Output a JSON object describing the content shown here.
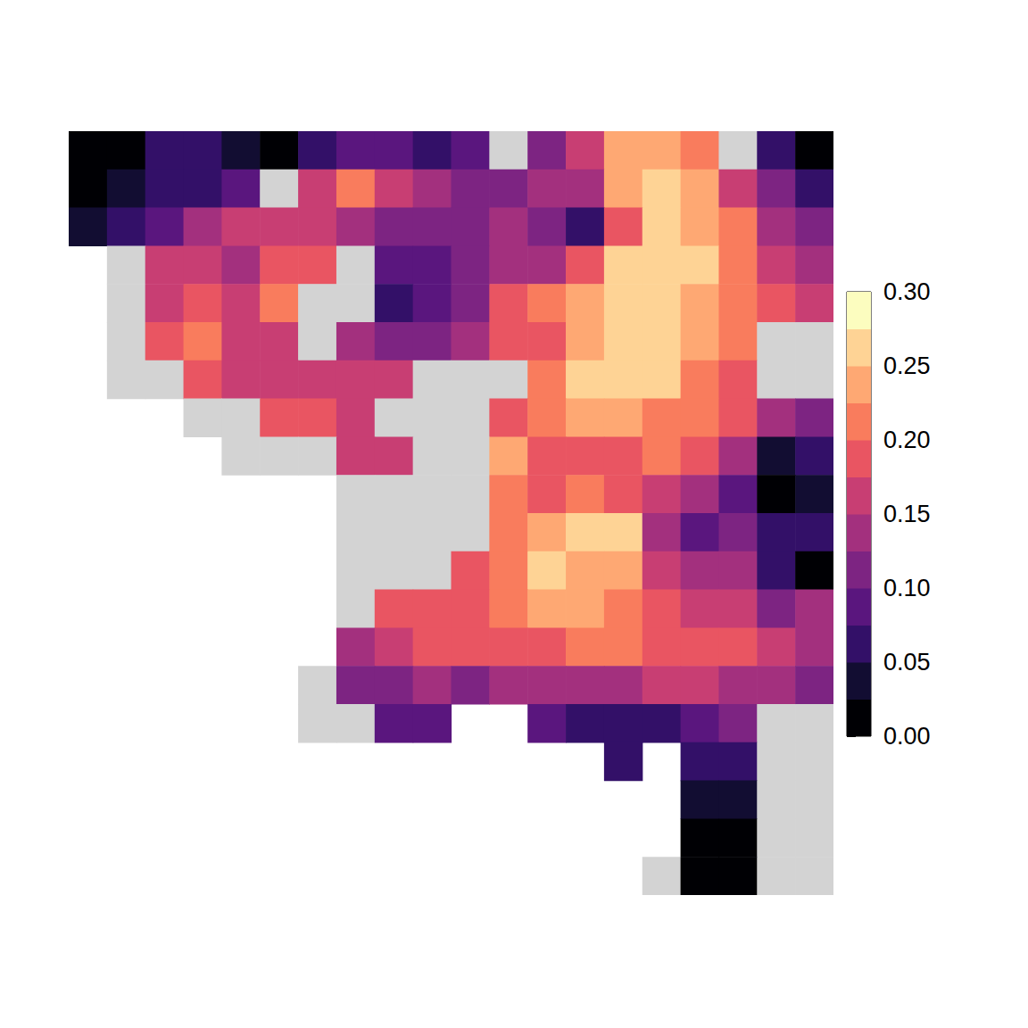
{
  "chart_data": {
    "type": "heatmap",
    "tick_labels": false,
    "xlim": [
      0,
      20
    ],
    "ylim": [
      0,
      20
    ],
    "cells": [
      [
        0,
        0,
        0.01
      ],
      [
        1,
        0,
        0.02
      ],
      [
        2,
        0,
        0.06
      ],
      [
        3,
        0,
        0.07
      ],
      [
        4,
        0,
        0.04
      ],
      [
        5,
        0,
        0.01
      ],
      [
        6,
        0,
        0.05
      ],
      [
        7,
        0,
        0.09
      ],
      [
        8,
        0,
        0.08
      ],
      [
        9,
        0,
        0.07
      ],
      [
        10,
        0,
        0.09
      ],
      [
        11,
        0,
        null
      ],
      [
        12,
        0,
        0.11
      ],
      [
        13,
        0,
        0.16
      ],
      [
        14,
        0,
        0.24
      ],
      [
        15,
        0,
        0.24
      ],
      [
        16,
        0,
        0.21
      ],
      [
        17,
        0,
        null
      ],
      [
        18,
        0,
        0.06
      ],
      [
        19,
        0,
        0.01
      ],
      [
        0,
        1,
        0.01
      ],
      [
        1,
        1,
        0.04
      ],
      [
        2,
        1,
        0.06
      ],
      [
        3,
        1,
        0.07
      ],
      [
        4,
        1,
        0.08
      ],
      [
        5,
        1,
        null
      ],
      [
        6,
        1,
        0.16
      ],
      [
        7,
        1,
        0.21
      ],
      [
        8,
        1,
        0.16
      ],
      [
        9,
        1,
        0.14
      ],
      [
        10,
        1,
        0.11
      ],
      [
        11,
        1,
        0.11
      ],
      [
        12,
        1,
        0.13
      ],
      [
        13,
        1,
        0.14
      ],
      [
        14,
        1,
        0.24
      ],
      [
        15,
        1,
        0.26
      ],
      [
        16,
        1,
        0.24
      ],
      [
        17,
        1,
        0.16
      ],
      [
        18,
        1,
        0.11
      ],
      [
        19,
        1,
        0.06
      ],
      [
        0,
        2,
        0.04
      ],
      [
        1,
        2,
        0.06
      ],
      [
        2,
        2,
        0.09
      ],
      [
        3,
        2,
        0.14
      ],
      [
        4,
        2,
        0.16
      ],
      [
        5,
        2,
        0.16
      ],
      [
        6,
        2,
        0.16
      ],
      [
        7,
        2,
        0.14
      ],
      [
        8,
        2,
        0.11
      ],
      [
        9,
        2,
        0.11
      ],
      [
        10,
        2,
        0.11
      ],
      [
        11,
        2,
        0.14
      ],
      [
        12,
        2,
        0.11
      ],
      [
        13,
        2,
        0.06
      ],
      [
        14,
        2,
        0.19
      ],
      [
        15,
        2,
        0.26
      ],
      [
        16,
        2,
        0.24
      ],
      [
        17,
        2,
        0.21
      ],
      [
        18,
        2,
        0.14
      ],
      [
        19,
        2,
        0.11
      ],
      [
        1,
        3,
        null
      ],
      [
        2,
        3,
        0.16
      ],
      [
        3,
        3,
        0.16
      ],
      [
        4,
        3,
        0.14
      ],
      [
        5,
        3,
        0.19
      ],
      [
        6,
        3,
        0.19
      ],
      [
        7,
        3,
        null
      ],
      [
        8,
        3,
        0.09
      ],
      [
        9,
        3,
        0.09
      ],
      [
        10,
        3,
        0.11
      ],
      [
        11,
        3,
        0.14
      ],
      [
        12,
        3,
        0.14
      ],
      [
        13,
        3,
        0.19
      ],
      [
        14,
        3,
        0.26
      ],
      [
        15,
        3,
        0.26
      ],
      [
        16,
        3,
        0.26
      ],
      [
        17,
        3,
        0.21
      ],
      [
        18,
        3,
        0.16
      ],
      [
        19,
        3,
        0.14
      ],
      [
        1,
        4,
        null
      ],
      [
        2,
        4,
        0.16
      ],
      [
        3,
        4,
        0.19
      ],
      [
        4,
        4,
        0.16
      ],
      [
        5,
        4,
        0.21
      ],
      [
        6,
        4,
        null
      ],
      [
        7,
        4,
        null
      ],
      [
        8,
        4,
        0.06
      ],
      [
        9,
        4,
        0.09
      ],
      [
        10,
        4,
        0.11
      ],
      [
        11,
        4,
        0.19
      ],
      [
        12,
        4,
        0.21
      ],
      [
        13,
        4,
        0.24
      ],
      [
        14,
        4,
        0.26
      ],
      [
        15,
        4,
        0.26
      ],
      [
        16,
        4,
        0.24
      ],
      [
        17,
        4,
        0.21
      ],
      [
        18,
        4,
        0.19
      ],
      [
        19,
        4,
        0.16
      ],
      [
        1,
        5,
        null
      ],
      [
        2,
        5,
        0.19
      ],
      [
        3,
        5,
        0.21
      ],
      [
        4,
        5,
        0.16
      ],
      [
        5,
        5,
        0.16
      ],
      [
        6,
        5,
        null
      ],
      [
        7,
        5,
        0.14
      ],
      [
        8,
        5,
        0.11
      ],
      [
        9,
        5,
        0.11
      ],
      [
        10,
        5,
        0.14
      ],
      [
        11,
        5,
        0.19
      ],
      [
        12,
        5,
        0.19
      ],
      [
        13,
        5,
        0.24
      ],
      [
        14,
        5,
        0.26
      ],
      [
        15,
        5,
        0.26
      ],
      [
        16,
        5,
        0.24
      ],
      [
        17,
        5,
        0.21
      ],
      [
        18,
        5,
        null
      ],
      [
        19,
        5,
        null
      ],
      [
        1,
        6,
        null
      ],
      [
        2,
        6,
        null
      ],
      [
        3,
        6,
        0.19
      ],
      [
        4,
        6,
        0.16
      ],
      [
        5,
        6,
        0.16
      ],
      [
        6,
        6,
        0.16
      ],
      [
        7,
        6,
        0.16
      ],
      [
        8,
        6,
        0.16
      ],
      [
        9,
        6,
        null
      ],
      [
        10,
        6,
        null
      ],
      [
        11,
        6,
        null
      ],
      [
        12,
        6,
        0.21
      ],
      [
        13,
        6,
        0.26
      ],
      [
        14,
        6,
        0.26
      ],
      [
        15,
        6,
        0.26
      ],
      [
        16,
        6,
        0.21
      ],
      [
        17,
        6,
        0.19
      ],
      [
        18,
        6,
        null
      ],
      [
        19,
        6,
        null
      ],
      [
        3,
        7,
        null
      ],
      [
        4,
        7,
        null
      ],
      [
        5,
        7,
        0.19
      ],
      [
        6,
        7,
        0.19
      ],
      [
        7,
        7,
        0.16
      ],
      [
        8,
        7,
        null
      ],
      [
        9,
        7,
        null
      ],
      [
        10,
        7,
        null
      ],
      [
        11,
        7,
        0.19
      ],
      [
        12,
        7,
        0.21
      ],
      [
        13,
        7,
        0.24
      ],
      [
        14,
        7,
        0.24
      ],
      [
        15,
        7,
        0.21
      ],
      [
        16,
        7,
        0.21
      ],
      [
        17,
        7,
        0.19
      ],
      [
        18,
        7,
        0.14
      ],
      [
        19,
        7,
        0.11
      ],
      [
        4,
        8,
        null
      ],
      [
        5,
        8,
        null
      ],
      [
        6,
        8,
        null
      ],
      [
        7,
        8,
        0.16
      ],
      [
        8,
        8,
        0.16
      ],
      [
        9,
        8,
        null
      ],
      [
        10,
        8,
        null
      ],
      [
        11,
        8,
        0.24
      ],
      [
        12,
        8,
        0.19
      ],
      [
        13,
        8,
        0.19
      ],
      [
        14,
        8,
        0.19
      ],
      [
        15,
        8,
        0.21
      ],
      [
        16,
        8,
        0.19
      ],
      [
        17,
        8,
        0.14
      ],
      [
        18,
        8,
        0.04
      ],
      [
        19,
        8,
        0.06
      ],
      [
        7,
        9,
        null
      ],
      [
        8,
        9,
        null
      ],
      [
        9,
        9,
        null
      ],
      [
        10,
        9,
        null
      ],
      [
        11,
        9,
        0.21
      ],
      [
        12,
        9,
        0.19
      ],
      [
        13,
        9,
        0.21
      ],
      [
        14,
        9,
        0.19
      ],
      [
        15,
        9,
        0.16
      ],
      [
        16,
        9,
        0.14
      ],
      [
        17,
        9,
        0.09
      ],
      [
        18,
        9,
        0.01
      ],
      [
        19,
        9,
        0.04
      ],
      [
        7,
        10,
        null
      ],
      [
        8,
        10,
        null
      ],
      [
        9,
        10,
        null
      ],
      [
        10,
        10,
        null
      ],
      [
        11,
        10,
        0.21
      ],
      [
        12,
        10,
        0.24
      ],
      [
        13,
        10,
        0.26
      ],
      [
        14,
        10,
        0.26
      ],
      [
        15,
        10,
        0.14
      ],
      [
        16,
        10,
        0.09
      ],
      [
        17,
        10,
        0.11
      ],
      [
        18,
        10,
        0.06
      ],
      [
        19,
        10,
        0.06
      ],
      [
        7,
        11,
        null
      ],
      [
        8,
        11,
        null
      ],
      [
        9,
        11,
        null
      ],
      [
        10,
        11,
        0.19
      ],
      [
        11,
        11,
        0.21
      ],
      [
        12,
        11,
        0.26
      ],
      [
        13,
        11,
        0.24
      ],
      [
        14,
        11,
        0.24
      ],
      [
        15,
        11,
        0.16
      ],
      [
        16,
        11,
        0.14
      ],
      [
        17,
        11,
        0.14
      ],
      [
        18,
        11,
        0.06
      ],
      [
        19,
        11,
        0.01
      ],
      [
        7,
        12,
        null
      ],
      [
        8,
        12,
        0.19
      ],
      [
        9,
        12,
        0.19
      ],
      [
        10,
        12,
        0.19
      ],
      [
        11,
        12,
        0.21
      ],
      [
        12,
        12,
        0.24
      ],
      [
        13,
        12,
        0.24
      ],
      [
        14,
        12,
        0.21
      ],
      [
        15,
        12,
        0.19
      ],
      [
        16,
        12,
        0.16
      ],
      [
        17,
        12,
        0.16
      ],
      [
        18,
        12,
        0.11
      ],
      [
        19,
        12,
        0.14
      ],
      [
        7,
        13,
        0.14
      ],
      [
        8,
        13,
        0.16
      ],
      [
        9,
        13,
        0.19
      ],
      [
        10,
        13,
        0.19
      ],
      [
        11,
        13,
        0.19
      ],
      [
        12,
        13,
        0.19
      ],
      [
        13,
        13,
        0.21
      ],
      [
        14,
        13,
        0.21
      ],
      [
        15,
        13,
        0.19
      ],
      [
        16,
        13,
        0.19
      ],
      [
        17,
        13,
        0.19
      ],
      [
        18,
        13,
        0.16
      ],
      [
        19,
        13,
        0.14
      ],
      [
        6,
        14,
        null
      ],
      [
        7,
        14,
        0.11
      ],
      [
        8,
        14,
        0.11
      ],
      [
        9,
        14,
        0.14
      ],
      [
        10,
        14,
        0.11
      ],
      [
        11,
        14,
        0.14
      ],
      [
        12,
        14,
        0.14
      ],
      [
        13,
        14,
        0.14
      ],
      [
        14,
        14,
        0.14
      ],
      [
        15,
        14,
        0.16
      ],
      [
        16,
        14,
        0.16
      ],
      [
        17,
        14,
        0.14
      ],
      [
        18,
        14,
        0.14
      ],
      [
        19,
        14,
        0.11
      ],
      [
        6,
        15,
        null
      ],
      [
        7,
        15,
        null
      ],
      [
        8,
        15,
        0.09
      ],
      [
        9,
        15,
        0.09
      ],
      [
        12,
        15,
        0.09
      ],
      [
        13,
        15,
        0.06
      ],
      [
        14,
        15,
        0.06
      ],
      [
        15,
        15,
        0.06
      ],
      [
        16,
        15,
        0.09
      ],
      [
        17,
        15,
        0.11
      ],
      [
        18,
        15,
        null
      ],
      [
        19,
        15,
        null
      ],
      [
        14,
        16,
        0.06
      ],
      [
        16,
        16,
        0.06
      ],
      [
        17,
        16,
        0.06
      ],
      [
        18,
        16,
        null
      ],
      [
        19,
        16,
        null
      ],
      [
        16,
        17,
        0.04
      ],
      [
        17,
        17,
        0.04
      ],
      [
        18,
        17,
        null
      ],
      [
        19,
        17,
        null
      ],
      [
        16,
        18,
        0.01
      ],
      [
        17,
        18,
        0.01
      ],
      [
        18,
        18,
        null
      ],
      [
        19,
        18,
        null
      ],
      [
        15,
        19,
        null
      ],
      [
        16,
        19,
        0.01
      ],
      [
        17,
        19,
        0.01
      ],
      [
        18,
        19,
        null
      ],
      [
        19,
        19,
        null
      ]
    ],
    "colorbar": {
      "breaks": [
        0,
        0.025,
        0.05,
        0.075,
        0.1,
        0.125,
        0.15,
        0.175,
        0.2,
        0.225,
        0.25,
        0.275,
        0.3
      ],
      "colors": [
        "#000004",
        "#120d32",
        "#331068",
        "#5a167e",
        "#7d2482",
        "#a3307e",
        "#c83e73",
        "#e95562",
        "#f97c5d",
        "#fea873",
        "#fed395",
        "#fcfdbf"
      ],
      "ylim": [
        0,
        0.3
      ],
      "yticks": [
        {
          "value": 0,
          "label": "0.00"
        },
        {
          "value": 0.05,
          "label": "0.05"
        },
        {
          "value": 0.1,
          "label": "0.10"
        },
        {
          "value": 0.15,
          "label": "0.15"
        },
        {
          "value": 0.2,
          "label": "0.20"
        },
        {
          "value": 0.25,
          "label": "0.25"
        },
        {
          "value": 0.3,
          "label": "0.30"
        }
      ]
    }
  }
}
